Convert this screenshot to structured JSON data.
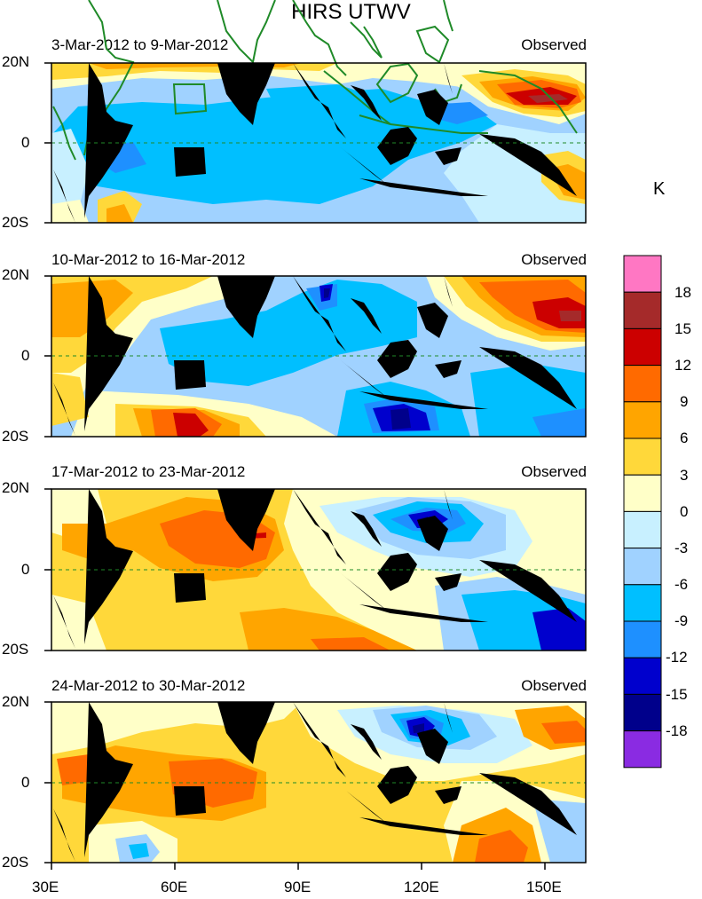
{
  "title": "HIRS UTWV",
  "unit": "K",
  "panels": [
    {
      "date": "3-Mar-2012 to 9-Mar-2012",
      "label": "Observed"
    },
    {
      "date": "10-Mar-2012 to 16-Mar-2012",
      "label": "Observed"
    },
    {
      "date": "17-Mar-2012 to 23-Mar-2012",
      "label": "Observed"
    },
    {
      "date": "24-Mar-2012 to 30-Mar-2012",
      "label": "Observed"
    }
  ],
  "lat_labels": [
    "20N",
    "0",
    "20S"
  ],
  "lon_labels": [
    "30E",
    "60E",
    "90E",
    "120E",
    "150E"
  ],
  "colorbar": {
    "labels": [
      "18",
      "15",
      "12",
      "9",
      "6",
      "3",
      "0",
      "-3",
      "-6",
      "-9",
      "-12",
      "-15",
      "-18"
    ],
    "colors": [
      "#ff77c3",
      "#a52a2a",
      "#cc0000",
      "#ff6a00",
      "#ffa500",
      "#ffd83a",
      "#ffffc8",
      "#c8f0ff",
      "#a0d2ff",
      "#00bfff",
      "#1e90ff",
      "#0000cd",
      "#00008b",
      "#8a2be2"
    ]
  }
}
